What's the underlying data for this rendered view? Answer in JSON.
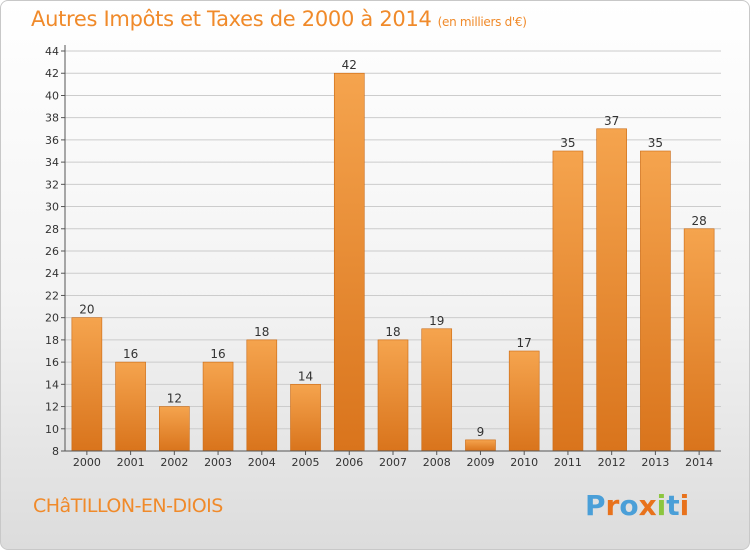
{
  "header": {
    "title": "Autres Impôts et Taxes de 2000 à 2014",
    "subtitle": "(en milliers d'€)"
  },
  "footer": {
    "commune": "CHâTILLON-EN-DIOIS",
    "logo": {
      "text": "Proxiti",
      "letter_colors": [
        "#4a9fd8",
        "#e8721c",
        "#4a9fd8",
        "#e8721c",
        "#8cc63f",
        "#4a9fd8",
        "#e8721c"
      ]
    }
  },
  "colors": {
    "bar_top": "#f5a44e",
    "bar_bottom": "#d9741c",
    "bar_edge": "#c96812",
    "axis": "#555555",
    "grid": "#cccccc",
    "accent": "#f08a2a"
  },
  "chart_data": {
    "type": "bar",
    "categories": [
      "2000",
      "2001",
      "2002",
      "2003",
      "2004",
      "2005",
      "2006",
      "2007",
      "2008",
      "2009",
      "2010",
      "2011",
      "2012",
      "2013",
      "2014"
    ],
    "values": [
      20,
      16,
      12,
      16,
      18,
      14,
      42,
      18,
      19,
      9,
      17,
      35,
      37,
      35,
      28
    ],
    "ylim": [
      8,
      44
    ],
    "yticks": [
      8,
      10,
      12,
      14,
      16,
      18,
      20,
      22,
      24,
      26,
      28,
      30,
      32,
      34,
      36,
      38,
      40,
      42,
      44
    ],
    "grid": "horizontal",
    "data_labels": true
  }
}
